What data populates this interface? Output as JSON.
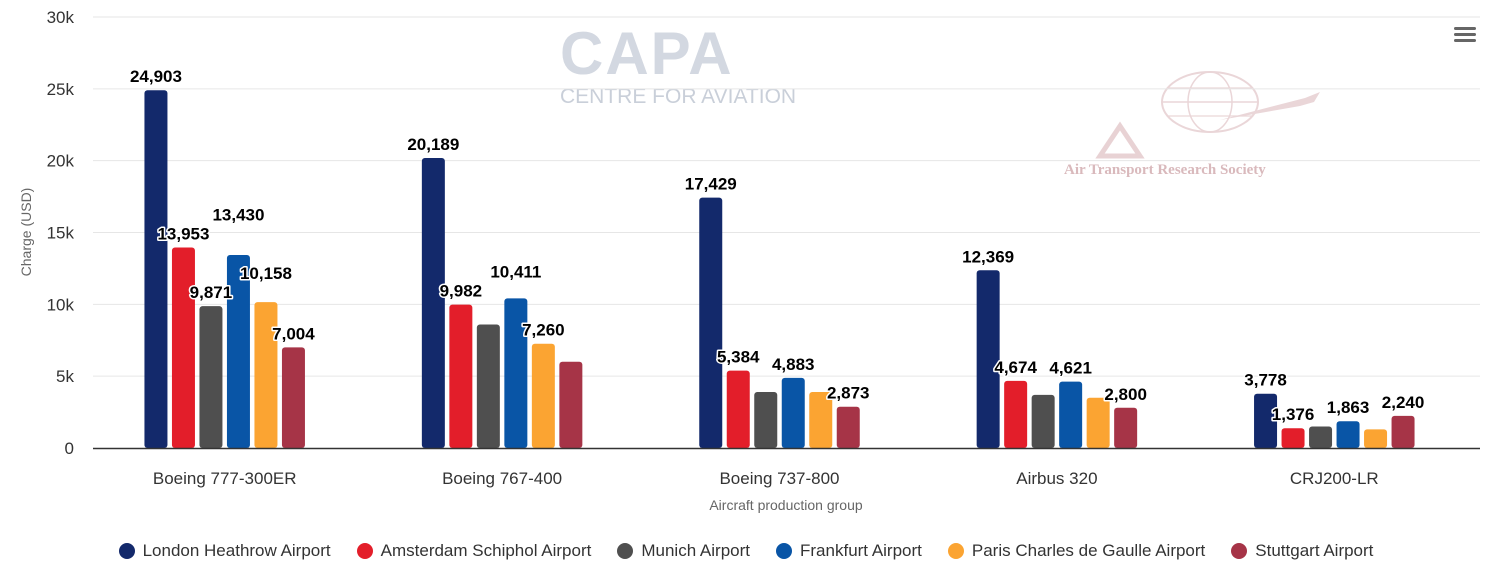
{
  "watermarks": {
    "capa_main": "CAPA",
    "capa_sub": "CENTRE FOR AVIATION",
    "atrs_text": "Air Transport Research Society"
  },
  "menu": {
    "icon": "hamburger-menu-icon"
  },
  "chart_data": {
    "type": "bar",
    "title": "",
    "xlabel": "Aircraft production group",
    "ylabel": "Charge (USD)",
    "ylim": [
      0,
      30000
    ],
    "yticks": [
      0,
      5000,
      10000,
      15000,
      20000,
      25000,
      30000
    ],
    "ytick_labels": [
      "0",
      "5k",
      "10k",
      "15k",
      "20k",
      "25k",
      "30k"
    ],
    "grid": true,
    "legend_position": "bottom-center",
    "categories": [
      "Boeing 777-300ER",
      "Boeing 767-400",
      "Boeing 737-800",
      "Airbus 320",
      "CRJ200-LR"
    ],
    "series": [
      {
        "name": "London Heathrow Airport",
        "color": "#13296b",
        "values": [
          24903,
          20189,
          17429,
          12369,
          3778
        ],
        "labels": [
          "24,903",
          "20,189",
          "17,429",
          "12,369",
          "3,778"
        ]
      },
      {
        "name": "Amsterdam Schiphol Airport",
        "color": "#e31e2a",
        "values": [
          13953,
          9982,
          5384,
          4674,
          1376
        ],
        "labels": [
          "13,953",
          "9,982",
          "5,384",
          "4,674",
          "1,376"
        ]
      },
      {
        "name": "Munich Airport",
        "color": "#4f4f4f",
        "values": [
          9871,
          8600,
          3900,
          3700,
          1500
        ],
        "labels": [
          "9,871",
          null,
          null,
          null,
          null
        ]
      },
      {
        "name": "Frankfurt Airport",
        "color": "#0955a6",
        "values": [
          13430,
          10411,
          4883,
          4621,
          1863
        ],
        "labels": [
          "13,430",
          "10,411",
          "4,883",
          "4,621",
          "1,863"
        ]
      },
      {
        "name": "Paris Charles de Gaulle Airport",
        "color": "#fba432",
        "values": [
          10158,
          7260,
          3900,
          3500,
          1300
        ],
        "labels": [
          "10,158",
          "7,260",
          null,
          null,
          null
        ]
      },
      {
        "name": "Stuttgart Airport",
        "color": "#a63447",
        "values": [
          7004,
          6000,
          2873,
          2800,
          2240
        ],
        "labels": [
          "7,004",
          null,
          "2,873",
          "2,800",
          "2,240"
        ]
      }
    ]
  }
}
